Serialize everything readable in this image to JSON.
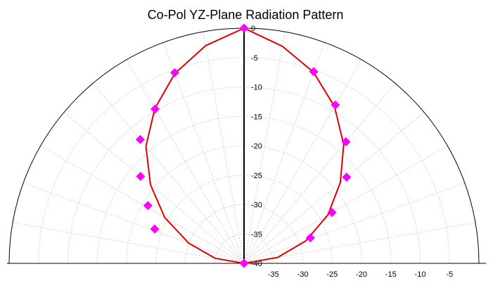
{
  "chart_data": {
    "type": "polar",
    "title": "Co-Pol YZ-Plane Radiation Pattern",
    "radial_axis": {
      "range": [
        -40,
        0
      ],
      "vertical_ticks": [
        "0",
        "-5",
        "-10",
        "-15",
        "-20",
        "-25",
        "-30",
        "-35",
        "-40"
      ],
      "horizontal_ticks": [
        "-35",
        "-30",
        "-25",
        "-20",
        "-15",
        "-10",
        "-5"
      ]
    },
    "grid": true,
    "angular_range_deg": [
      -90,
      90
    ],
    "series": [
      {
        "type": "line",
        "color": "#e00000",
        "points": [
          {
            "theta": -90,
            "r": -40
          },
          {
            "theta": -80,
            "r": -35
          },
          {
            "theta": -70,
            "r": -30
          },
          {
            "theta": -60,
            "r": -24.4
          },
          {
            "theta": -50,
            "r": -19.2
          },
          {
            "theta": -40,
            "r": -14
          },
          {
            "theta": -30,
            "r": -9.6
          },
          {
            "theta": -20,
            "r": -5.6
          },
          {
            "theta": -10,
            "r": -2.4
          },
          {
            "theta": 0,
            "r": 0
          },
          {
            "theta": 10,
            "r": -2.5
          },
          {
            "theta": 20,
            "r": -5.4
          },
          {
            "theta": 30,
            "r": -9.2
          },
          {
            "theta": 40,
            "r": -13.6
          },
          {
            "theta": 50,
            "r": -18.6
          },
          {
            "theta": 60,
            "r": -23.5
          },
          {
            "theta": 70,
            "r": -28.8
          },
          {
            "theta": 80,
            "r": -34.2
          },
          {
            "theta": 90,
            "r": -40
          }
        ]
      },
      {
        "type": "scatter",
        "color": "#ff00ff",
        "marker": "diamond",
        "points": [
          {
            "theta": 0,
            "r": 0
          },
          {
            "theta": 20,
            "r": -5.3
          },
          {
            "theta": 30,
            "r": -8.9
          },
          {
            "theta": 40,
            "r": -13
          },
          {
            "theta": 50,
            "r": -17.2
          },
          {
            "theta": 60,
            "r": -22.7
          },
          {
            "theta": 69,
            "r": -27.9
          },
          {
            "theta": -20,
            "r": -5.5
          },
          {
            "theta": -30,
            "r": -9.7
          },
          {
            "theta": -40,
            "r": -12.5
          },
          {
            "theta": -50,
            "r": -17
          },
          {
            "theta": -59,
            "r": -20.9
          },
          {
            "theta": -69,
            "r": -23.7
          },
          {
            "theta": 90,
            "r": -40
          }
        ]
      }
    ]
  }
}
